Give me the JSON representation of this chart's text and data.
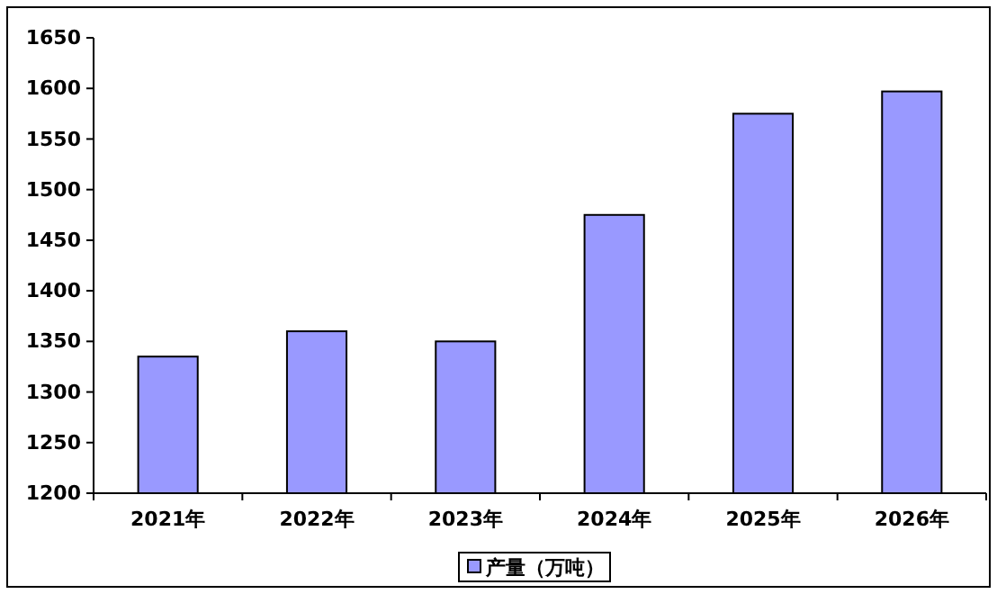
{
  "chart_data": {
    "type": "bar",
    "categories": [
      "2021年",
      "2022年",
      "2023年",
      "2024年",
      "2025年",
      "2026年"
    ],
    "series": [
      {
        "name": "产量（万吨）",
        "color": "#9999ff",
        "values": [
          1335,
          1360,
          1350,
          1475,
          1575,
          1597
        ]
      }
    ],
    "ylim": [
      1200,
      1650
    ],
    "yticks": [
      1200,
      1250,
      1300,
      1350,
      1400,
      1450,
      1500,
      1550,
      1600,
      1650
    ],
    "grid": false,
    "legend": "bottom"
  }
}
